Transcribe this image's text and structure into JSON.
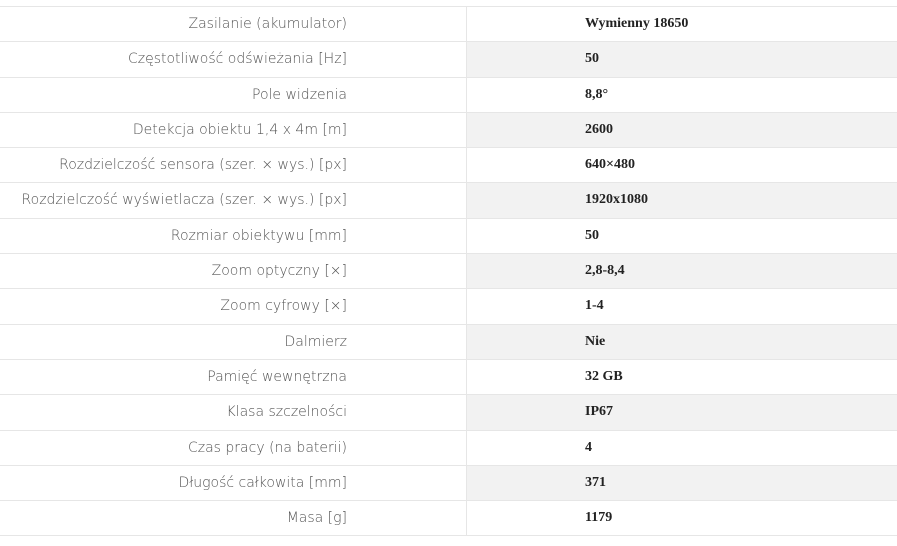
{
  "table": {
    "rows": [
      [
        "Zasilanie (akumulator)",
        "Wymienny 18650"
      ],
      [
        "Częstotliwość odświeżania [Hz]",
        "50"
      ],
      [
        "Pole widzenia",
        "8,8°"
      ],
      [
        "Detekcja obiektu 1,4 x 4m [m]",
        "2600"
      ],
      [
        "Rozdzielczość sensora (szer. × wys.) [px]",
        "640×480"
      ],
      [
        "Rozdzielczość wyświetlacza (szer. × wys.) [px]",
        "1920x1080"
      ],
      [
        "Rozmiar obiektywu [mm]",
        "50"
      ],
      [
        "Zoom optyczny [×]",
        "2,8-8,4"
      ],
      [
        "Zoom cyfrowy [×]",
        "1-4"
      ],
      [
        "Dalmierz",
        "Nie"
      ],
      [
        "Pamięć wewnętrzna",
        "32 GB"
      ],
      [
        "Klasa szczelności",
        "IP67"
      ],
      [
        "Czas pracy (na baterii)",
        "4"
      ],
      [
        "Długość całkowita [mm]",
        "371"
      ],
      [
        "Masa [g]",
        "1179"
      ]
    ]
  }
}
